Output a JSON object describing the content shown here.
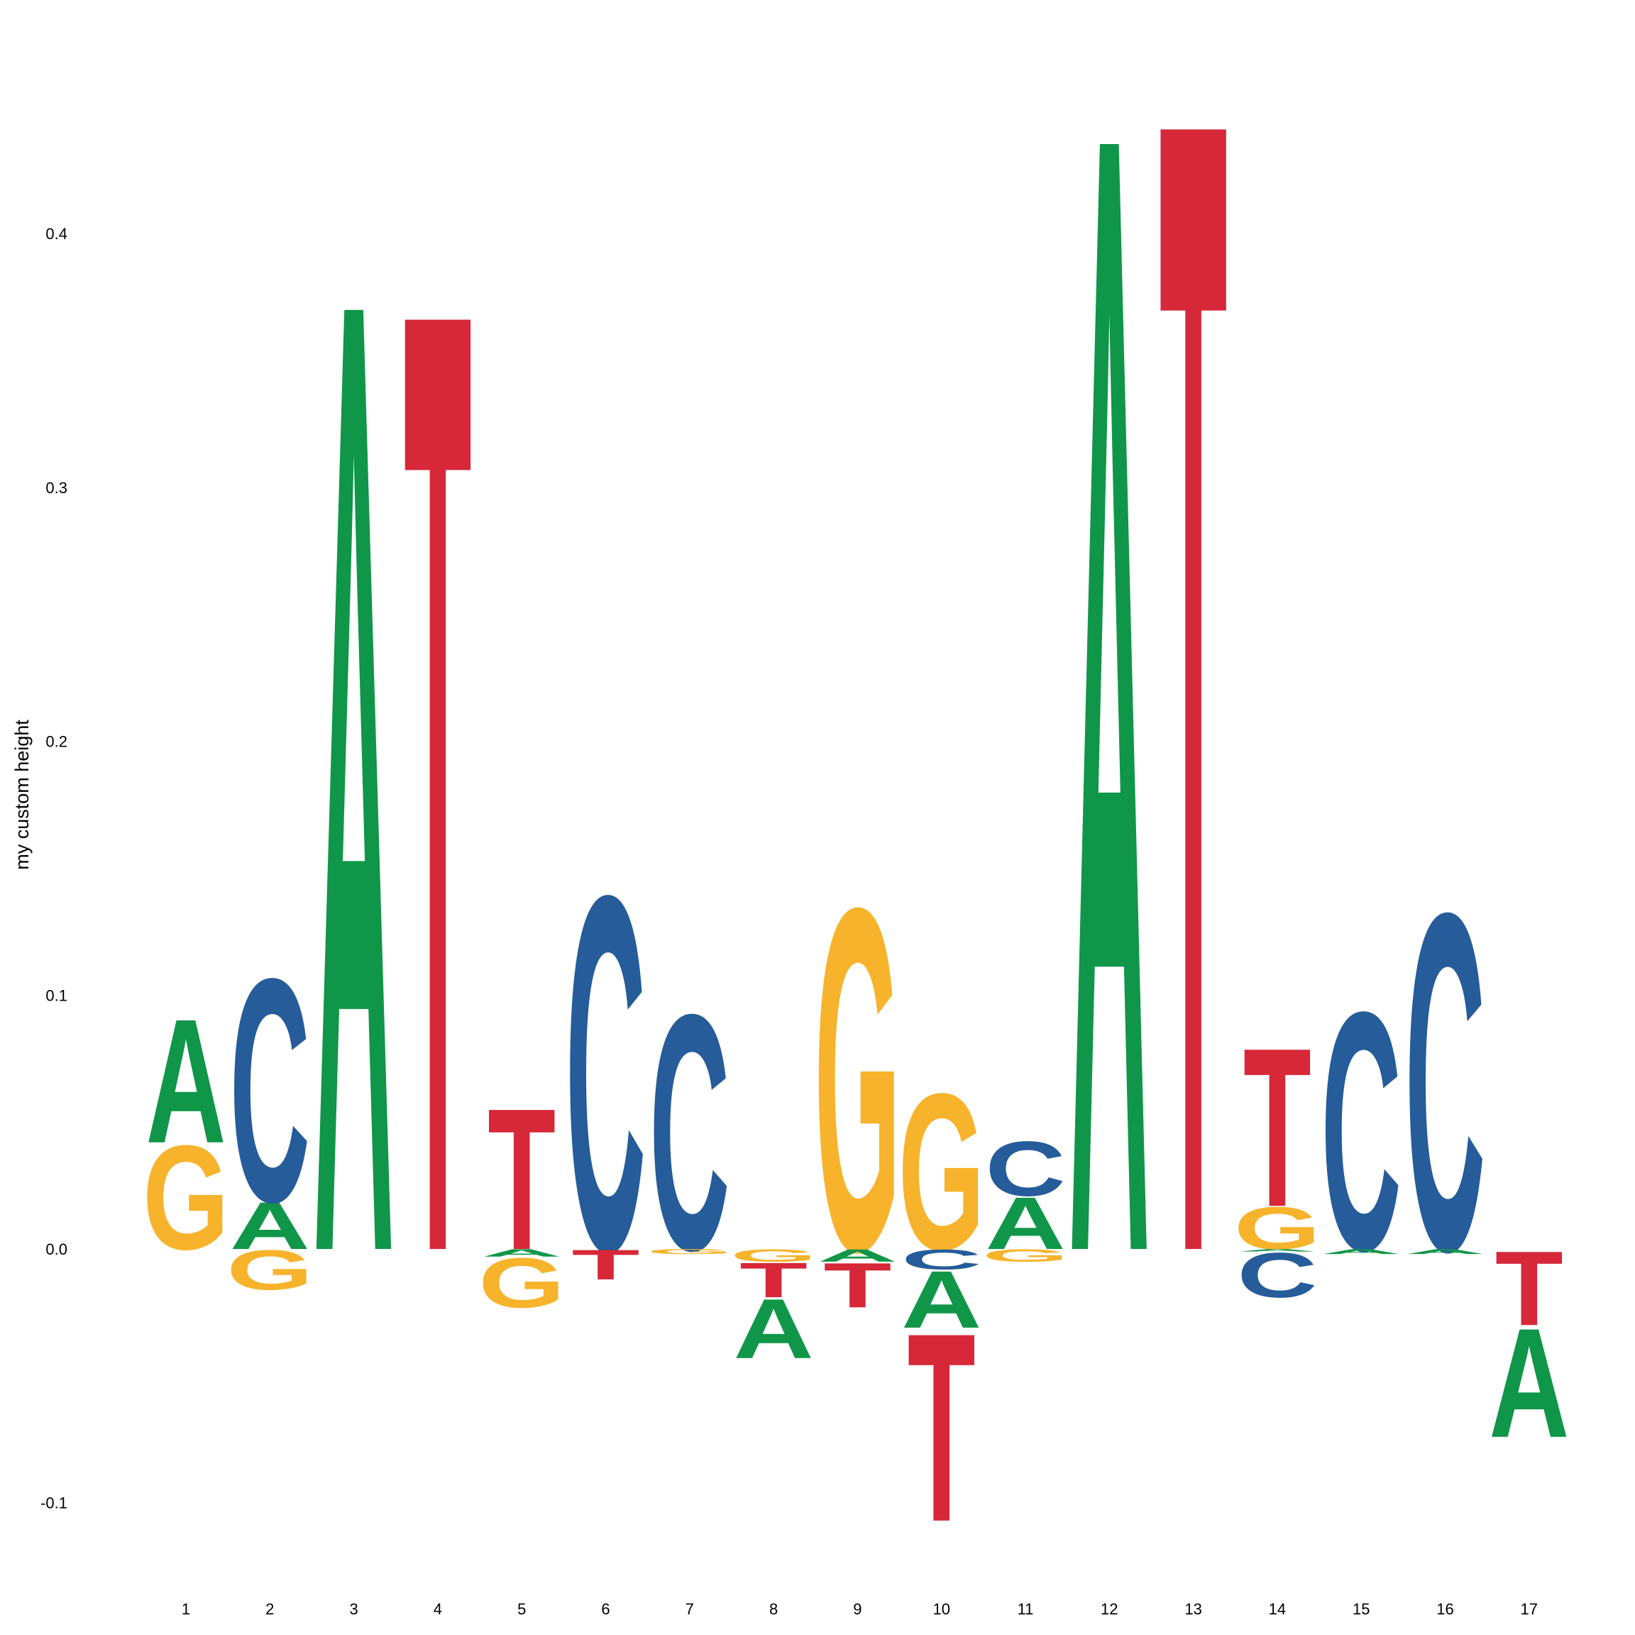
{
  "chart_data": {
    "type": "sequence-logo",
    "ylabel": "my custom height",
    "ylim": [
      -0.14,
      0.46
    ],
    "yticks": [
      {
        "value": -0.1,
        "label": "-0.1"
      },
      {
        "value": 0.0,
        "label": "0.0"
      },
      {
        "value": 0.1,
        "label": "0.1"
      },
      {
        "value": 0.2,
        "label": "0.2"
      },
      {
        "value": 0.3,
        "label": "0.3"
      },
      {
        "value": 0.4,
        "label": "0.4"
      }
    ],
    "positions": [
      "1",
      "2",
      "3",
      "4",
      "5",
      "6",
      "7",
      "8",
      "9",
      "10",
      "11",
      "12",
      "13",
      "14",
      "15",
      "16",
      "17"
    ],
    "colors": {
      "A": "#109648",
      "C": "#255C99",
      "G": "#F7B32B",
      "T": "#D62839"
    },
    "letters": [
      {
        "pos": 1,
        "base": "G",
        "value": 0.042
      },
      {
        "pos": 1,
        "base": "A",
        "value": 0.05
      },
      {
        "pos": 2,
        "base": "A",
        "value": 0.019
      },
      {
        "pos": 2,
        "base": "C",
        "value": 0.09
      },
      {
        "pos": 2,
        "base": "G",
        "value": -0.016
      },
      {
        "pos": 3,
        "base": "A",
        "value": 0.385
      },
      {
        "pos": 4,
        "base": "T",
        "value": 0.381
      },
      {
        "pos": 5,
        "base": "T",
        "value": 0.057
      },
      {
        "pos": 5,
        "base": "A",
        "value": -0.003
      },
      {
        "pos": 5,
        "base": "G",
        "value": -0.02
      },
      {
        "pos": 6,
        "base": "C",
        "value": 0.143
      },
      {
        "pos": 6,
        "base": "T",
        "value": -0.012
      },
      {
        "pos": 7,
        "base": "C",
        "value": 0.095
      },
      {
        "pos": 7,
        "base": "G",
        "value": -0.002
      },
      {
        "pos": 8,
        "base": "G",
        "value": -0.005
      },
      {
        "pos": 8,
        "base": "T",
        "value": -0.014
      },
      {
        "pos": 8,
        "base": "A",
        "value": -0.024
      },
      {
        "pos": 9,
        "base": "G",
        "value": 0.138
      },
      {
        "pos": 9,
        "base": "A",
        "value": -0.005
      },
      {
        "pos": 9,
        "base": "T",
        "value": -0.018
      },
      {
        "pos": 10,
        "base": "G",
        "value": 0.063
      },
      {
        "pos": 10,
        "base": "C",
        "value": -0.008
      },
      {
        "pos": 10,
        "base": "A",
        "value": -0.023
      },
      {
        "pos": 10,
        "base": "T",
        "value": -0.076
      },
      {
        "pos": 11,
        "base": "A",
        "value": 0.021
      },
      {
        "pos": 11,
        "base": "C",
        "value": 0.022
      },
      {
        "pos": 11,
        "base": "G",
        "value": -0.005
      },
      {
        "pos": 12,
        "base": "A",
        "value": 0.453
      },
      {
        "pos": 13,
        "base": "T",
        "value": 0.459
      },
      {
        "pos": 14,
        "base": "G",
        "value": 0.017
      },
      {
        "pos": 14,
        "base": "T",
        "value": 0.064
      },
      {
        "pos": 14,
        "base": "A",
        "value": -0.001
      },
      {
        "pos": 14,
        "base": "C",
        "value": -0.018
      },
      {
        "pos": 15,
        "base": "C",
        "value": 0.096
      },
      {
        "pos": 15,
        "base": "A",
        "value": -0.002
      },
      {
        "pos": 16,
        "base": "C",
        "value": 0.136
      },
      {
        "pos": 16,
        "base": "A",
        "value": -0.002
      },
      {
        "pos": 17,
        "base": "T",
        "value": -0.03
      },
      {
        "pos": 17,
        "base": "A",
        "value": -0.044
      }
    ]
  }
}
